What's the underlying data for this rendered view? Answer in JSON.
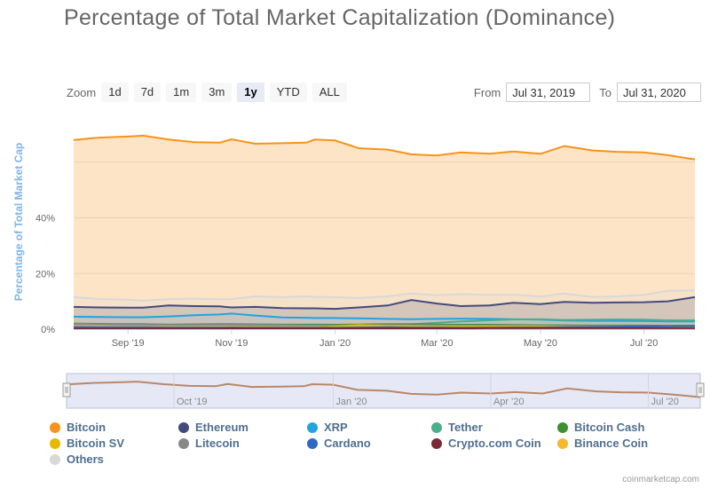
{
  "title": "Percentage of Total Market Capitalization (Dominance)",
  "zoom": {
    "label": "Zoom",
    "buttons": [
      "1d",
      "7d",
      "1m",
      "3m",
      "1y",
      "YTD",
      "ALL"
    ],
    "active": "1y"
  },
  "range": {
    "from_label": "From",
    "from_value": "Jul 31, 2019",
    "to_label": "To",
    "to_value": "Jul 31, 2020"
  },
  "credit": "coinmarketcap.com",
  "chart_data": {
    "type": "area",
    "title": "Percentage of Total Market Capitalization (Dominance)",
    "ylabel": "Percentage of Total Market Cap",
    "ylim": [
      0,
      80
    ],
    "y_ticks": [
      "0%",
      "20%",
      "40%"
    ],
    "x_ticks": [
      "Sep '19",
      "Nov '19",
      "Jan '20",
      "Mar '20",
      "May '20",
      "Jul '20"
    ],
    "navigator_ticks": [
      "Oct '19",
      "Jan '20",
      "Apr '20",
      "Jul '20"
    ],
    "x": [
      "2019-07-31",
      "2019-08-15",
      "2019-09-01",
      "2019-09-10",
      "2019-09-25",
      "2019-10-10",
      "2019-10-25",
      "2019-11-01",
      "2019-11-15",
      "2019-12-01",
      "2019-12-15",
      "2019-12-20",
      "2020-01-01",
      "2020-01-15",
      "2020-02-01",
      "2020-02-15",
      "2020-03-01",
      "2020-03-15",
      "2020-04-01",
      "2020-04-15",
      "2020-05-01",
      "2020-05-15",
      "2020-06-01",
      "2020-06-15",
      "2020-07-01",
      "2020-07-15",
      "2020-07-31"
    ],
    "series": [
      {
        "name": "Bitcoin",
        "color": "#f7931a",
        "values": [
          68.0,
          68.8,
          69.2,
          69.5,
          68.1,
          67.2,
          67.0,
          68.2,
          66.6,
          66.8,
          67.0,
          68.1,
          67.8,
          65.0,
          64.5,
          62.8,
          62.4,
          63.5,
          63.0,
          63.8,
          63.0,
          65.8,
          64.2,
          63.7,
          63.5,
          62.5,
          61.0
        ]
      },
      {
        "name": "Ethereum",
        "color": "#434a7e",
        "values": [
          8.0,
          7.8,
          7.7,
          7.7,
          8.5,
          8.3,
          8.2,
          7.8,
          8.0,
          7.6,
          7.5,
          7.5,
          7.3,
          7.8,
          8.5,
          10.5,
          9.2,
          8.3,
          8.5,
          9.5,
          9.0,
          9.8,
          9.5,
          9.6,
          9.7,
          10.0,
          11.5
        ]
      },
      {
        "name": "XRP",
        "color": "#23a3e0",
        "values": [
          4.5,
          4.4,
          4.3,
          4.3,
          4.6,
          5.0,
          5.3,
          5.6,
          4.9,
          4.2,
          4.1,
          4.0,
          4.0,
          3.9,
          3.7,
          3.6,
          3.7,
          3.8,
          3.7,
          3.6,
          3.4,
          3.1,
          3.0,
          3.0,
          2.9,
          2.8,
          2.8
        ]
      },
      {
        "name": "Tether",
        "color": "#4cae8c",
        "values": [
          1.5,
          1.6,
          1.6,
          1.6,
          1.7,
          1.8,
          1.9,
          1.9,
          1.8,
          1.7,
          1.7,
          1.7,
          1.6,
          1.6,
          1.7,
          1.8,
          2.3,
          2.8,
          3.2,
          3.5,
          3.6,
          3.3,
          3.4,
          3.5,
          3.4,
          3.2,
          3.2
        ]
      },
      {
        "name": "Bitcoin Cash",
        "color": "#3d8f2f",
        "values": [
          2.0,
          1.9,
          1.8,
          1.8,
          1.6,
          1.6,
          1.6,
          1.5,
          1.5,
          1.5,
          1.5,
          1.5,
          1.6,
          1.7,
          1.8,
          1.8,
          1.7,
          1.6,
          1.6,
          1.5,
          1.4,
          1.4,
          1.3,
          1.3,
          1.3,
          1.2,
          1.2
        ]
      },
      {
        "name": "Bitcoin SV",
        "color": "#e6b800",
        "values": [
          0.6,
          0.6,
          0.6,
          0.6,
          0.6,
          0.6,
          0.6,
          0.6,
          0.6,
          0.6,
          0.6,
          0.6,
          1.0,
          1.5,
          1.2,
          1.1,
          1.0,
          1.0,
          1.0,
          1.0,
          1.0,
          0.9,
          0.9,
          0.9,
          0.9,
          0.9,
          0.9
        ]
      },
      {
        "name": "Litecoin",
        "color": "#888888",
        "values": [
          2.0,
          1.8,
          1.6,
          1.6,
          1.5,
          1.5,
          1.6,
          1.6,
          1.5,
          1.4,
          1.3,
          1.3,
          1.3,
          1.4,
          1.5,
          1.4,
          1.4,
          1.3,
          1.3,
          1.3,
          1.2,
          1.2,
          1.1,
          1.1,
          1.1,
          1.0,
          1.0
        ]
      },
      {
        "name": "Cardano",
        "color": "#2d68c4",
        "values": [
          0.8,
          0.7,
          0.7,
          0.7,
          0.6,
          0.6,
          0.6,
          0.6,
          0.5,
          0.5,
          0.5,
          0.5,
          0.5,
          0.6,
          0.7,
          0.6,
          0.6,
          0.5,
          0.5,
          0.6,
          0.6,
          0.7,
          0.8,
          0.9,
          1.0,
          1.1,
          1.2
        ]
      },
      {
        "name": "Crypto.com Coin",
        "color": "#7a2a35",
        "values": [
          0.2,
          0.2,
          0.2,
          0.2,
          0.2,
          0.2,
          0.2,
          0.3,
          0.3,
          0.3,
          0.3,
          0.3,
          0.3,
          0.3,
          0.3,
          0.3,
          0.3,
          0.3,
          0.4,
          0.4,
          0.4,
          0.4,
          0.4,
          0.4,
          0.4,
          0.4,
          0.4
        ]
      },
      {
        "name": "Binance Coin",
        "color": "#f3ba2f",
        "values": [
          1.2,
          1.1,
          1.0,
          1.0,
          0.9,
          0.9,
          0.9,
          0.9,
          0.8,
          0.8,
          0.8,
          0.8,
          0.8,
          0.8,
          0.9,
          0.9,
          0.8,
          0.8,
          0.8,
          0.8,
          0.8,
          0.8,
          0.8,
          0.8,
          0.8,
          0.8,
          0.8
        ]
      },
      {
        "name": "Others",
        "color": "#d8d8d8",
        "values": [
          11.5,
          10.8,
          10.6,
          10.3,
          10.8,
          11.0,
          10.7,
          10.8,
          11.8,
          11.5,
          11.8,
          11.6,
          11.5,
          11.2,
          11.8,
          12.8,
          12.2,
          12.6,
          12.3,
          12.4,
          11.7,
          12.8,
          11.5,
          11.8,
          12.3,
          13.8,
          13.9
        ]
      }
    ]
  }
}
